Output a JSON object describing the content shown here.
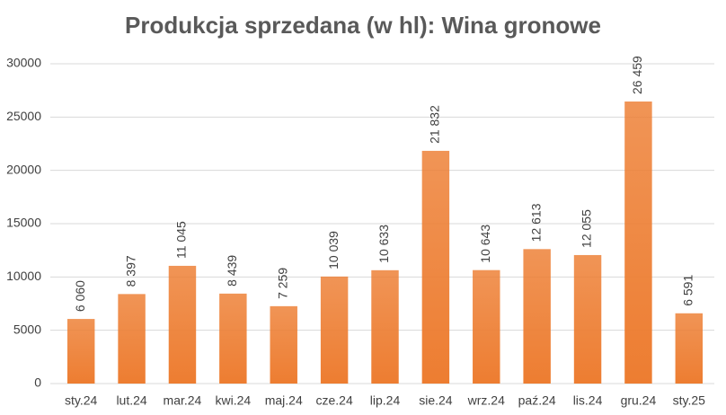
{
  "chart_data": {
    "type": "bar",
    "title": "Produkcja sprzedana (w hl): Wina gronowe",
    "categories": [
      "sty.24",
      "lut.24",
      "mar.24",
      "kwi.24",
      "maj.24",
      "cze.24",
      "lip.24",
      "sie.24",
      "wrz.24",
      "paź.24",
      "lis.24",
      "gru.24",
      "sty.25"
    ],
    "values": [
      6060,
      8397,
      11045,
      8439,
      7259,
      10039,
      10633,
      21832,
      10643,
      12613,
      12055,
      26459,
      6591
    ],
    "value_labels": [
      "6 060",
      "8 397",
      "11 045",
      "8 439",
      "7 259",
      "10 039",
      "10 633",
      "21 832",
      "10 643",
      "12 613",
      "12 055",
      "26 459",
      "6 591"
    ],
    "color": "#ed7d31",
    "ylim": [
      0,
      30000
    ],
    "yticks": [
      0,
      5000,
      10000,
      15000,
      20000,
      25000,
      30000
    ],
    "grid": true
  }
}
